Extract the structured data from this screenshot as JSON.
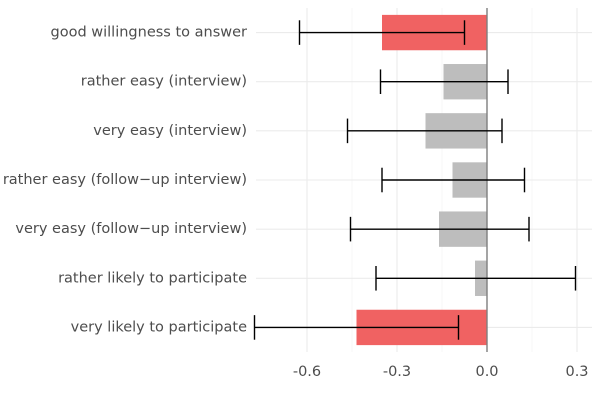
{
  "chart_data": {
    "type": "bar",
    "orientation": "horizontal",
    "title": "",
    "xlabel": "",
    "ylabel": "",
    "categories": [
      "good willingness to answer",
      "rather easy (interview)",
      "very easy (interview)",
      "rather easy (follow−up interview)",
      "very easy (follow−up interview)",
      "rather likely to participate",
      "very likely to participate"
    ],
    "values": [
      -0.35,
      -0.145,
      -0.205,
      -0.115,
      -0.16,
      -0.04,
      -0.435
    ],
    "error_low": [
      -0.625,
      -0.355,
      -0.465,
      -0.35,
      -0.455,
      -0.37,
      -0.775
    ],
    "error_high": [
      -0.075,
      0.07,
      0.05,
      0.125,
      0.14,
      0.295,
      -0.095
    ],
    "highlighted": [
      true,
      false,
      false,
      false,
      false,
      false,
      true
    ],
    "xlim": [
      -0.77,
      0.35
    ],
    "x_ticks": [
      -0.6,
      -0.3,
      0.0,
      0.3
    ],
    "x_tick_labels": [
      "-0.6",
      "-0.3",
      "0.0",
      "0.3"
    ],
    "grid": true,
    "colors": {
      "highlight": "#f06262",
      "default": "#bdbdbd",
      "grid_major": "#ebebeb",
      "grid_minor": "#f5f5f5",
      "zero_line": "#7f7f7f",
      "error_bar": "#000000"
    }
  }
}
